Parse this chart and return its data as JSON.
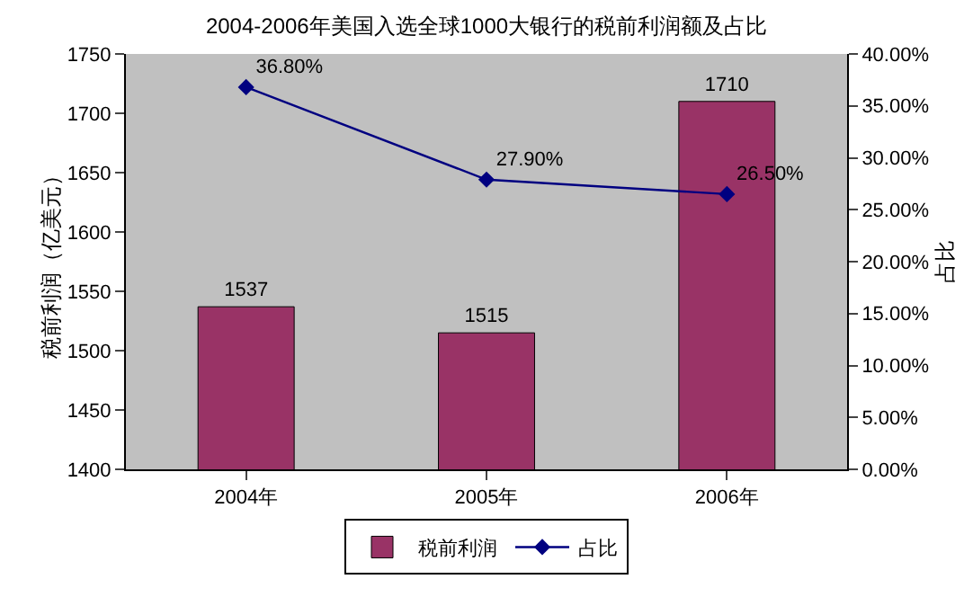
{
  "chart_data": {
    "type": "bar",
    "title": "2004-2006年美国入选全球1000大银行的税前利润额及占比",
    "ylabel": "税前利润（亿美元）",
    "y2label": "占比",
    "categories": [
      "2004年",
      "2005年",
      "2006年"
    ],
    "series": [
      {
        "name": "税前利润",
        "color": "#993366",
        "values": [
          1537,
          1515,
          1710
        ],
        "value_labels": [
          "1537",
          "1515",
          "1710"
        ]
      },
      {
        "name": "占比",
        "type": "line",
        "axis": "y2",
        "color": "#000080",
        "marker": "diamond",
        "values": [
          36.8,
          27.9,
          26.5
        ],
        "value_labels": [
          "36.80%",
          "27.90%",
          "26.50%"
        ]
      }
    ],
    "ylim": [
      1400,
      1750
    ],
    "yticks": [
      1400,
      1450,
      1500,
      1550,
      1600,
      1650,
      1700,
      1750
    ],
    "y2lim": [
      0,
      40
    ],
    "y2ticks": [
      {
        "value": 0,
        "label": "0.00%"
      },
      {
        "value": 5,
        "label": "5.00%"
      },
      {
        "value": 10,
        "label": "10.00%"
      },
      {
        "value": 15,
        "label": "15.00%"
      },
      {
        "value": 20,
        "label": "20.00%"
      },
      {
        "value": 25,
        "label": "25.00%"
      },
      {
        "value": 30,
        "label": "30.00%"
      },
      {
        "value": 35,
        "label": "35.00%"
      },
      {
        "value": 40,
        "label": "40.00%"
      }
    ],
    "grid": false,
    "legend": "bottom"
  }
}
